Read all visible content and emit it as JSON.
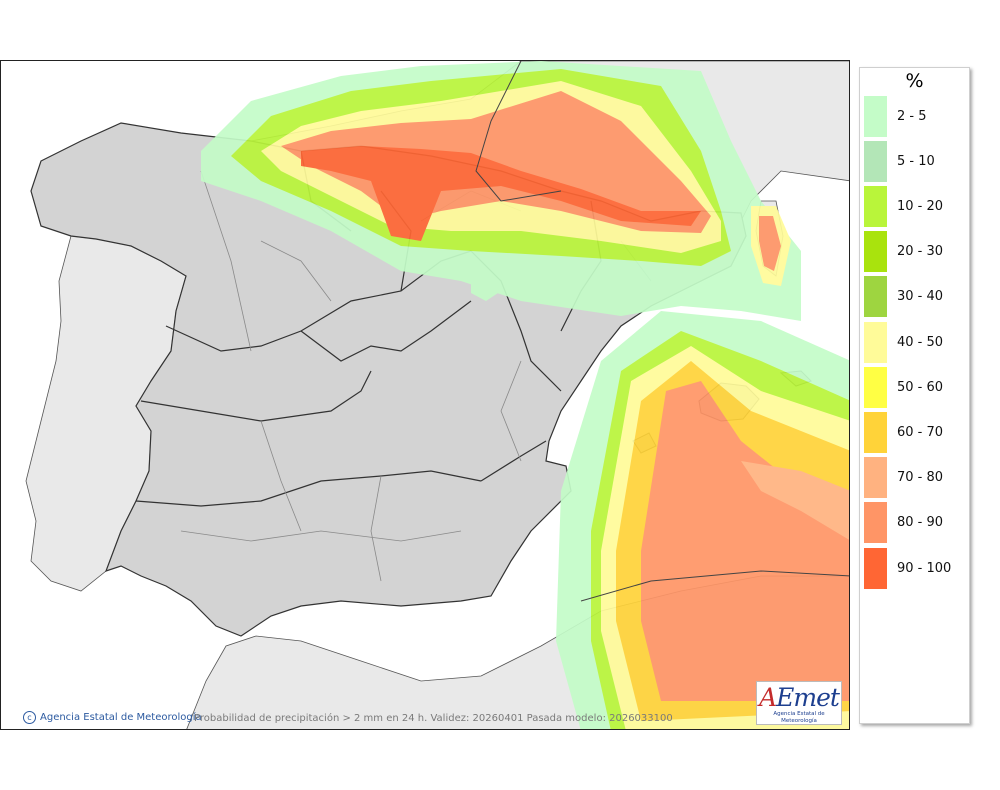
{
  "legend": {
    "unit": "%",
    "items": [
      {
        "label": "2 - 5",
        "color": "#c4fcc8"
      },
      {
        "label": "5 - 10",
        "color": "#b3e6b7"
      },
      {
        "label": "10 - 20",
        "color": "#b9f53a"
      },
      {
        "label": "20 - 30",
        "color": "#a9e30d"
      },
      {
        "label": "30 - 40",
        "color": "#9ed540"
      },
      {
        "label": "40 - 50",
        "color": "#fffb99"
      },
      {
        "label": "50 - 60",
        "color": "#ffff44"
      },
      {
        "label": "60 - 70",
        "color": "#ffd339"
      },
      {
        "label": "70 - 80",
        "color": "#ffb280"
      },
      {
        "label": "80 - 90",
        "color": "#ff9566"
      },
      {
        "label": "90 - 100",
        "color": "#ff6634"
      }
    ]
  },
  "footer": {
    "credit": "Agencia Estatal de Meteorología",
    "caption": "Probabilidad de precipitación > 2 mm en 24 h. Validez: 20260401 Pasada modelo: 2026033100"
  },
  "logo": {
    "brand_a": "A",
    "brand_rest": "Emet",
    "subtitle": "Agencia Estatal de Meteorología"
  },
  "colors": {
    "land_spain": "#d3d3d3",
    "land_foreign": "#e9e9e9",
    "sea": "#ffffff",
    "border": "#333333",
    "province_line": "#8a8a8a"
  }
}
